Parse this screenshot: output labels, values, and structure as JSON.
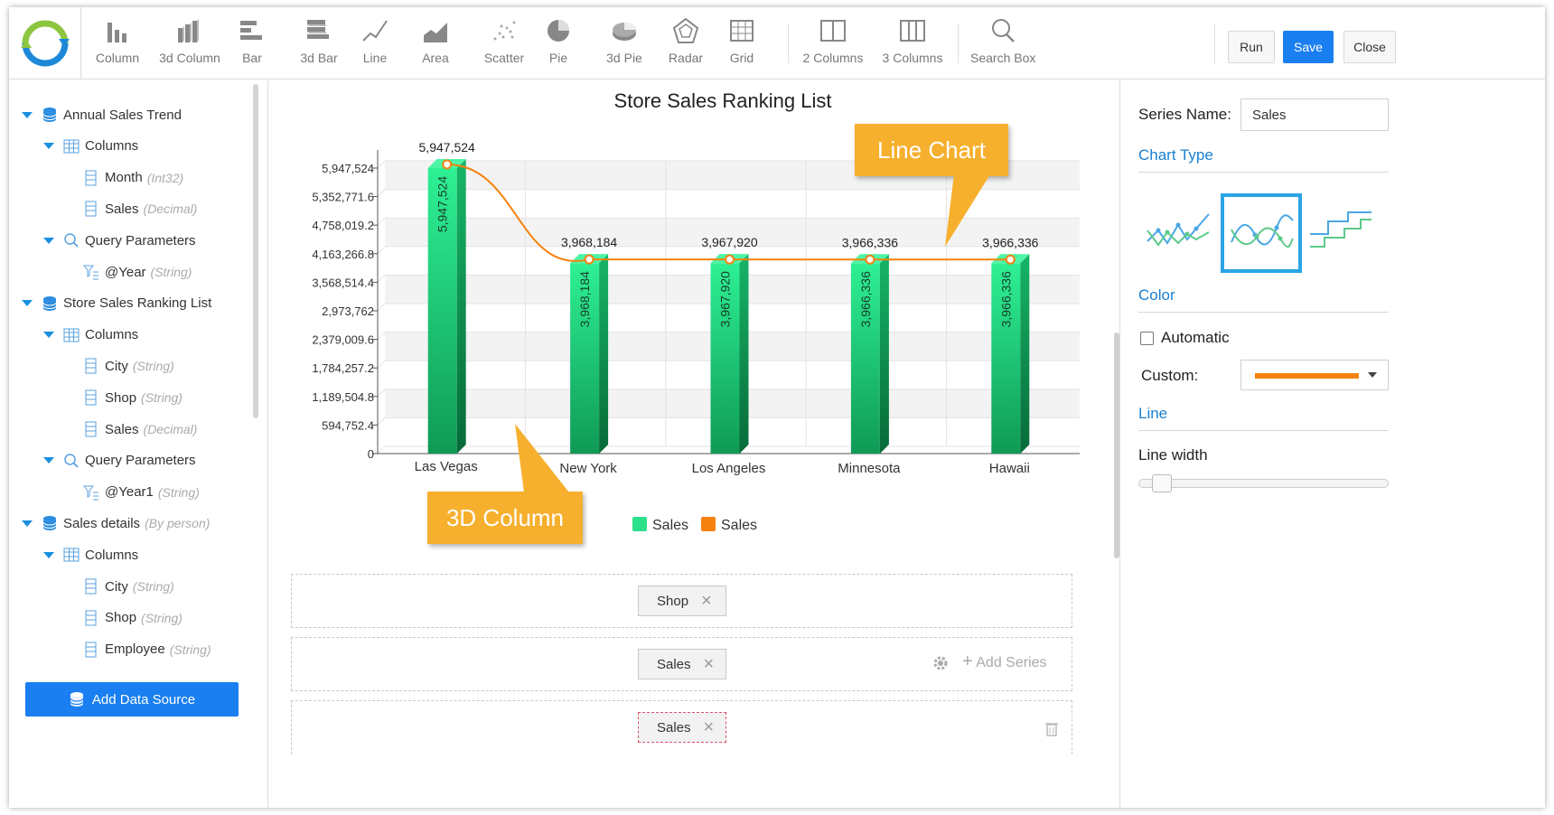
{
  "toolbar": {
    "items": [
      {
        "label": "Column",
        "icon": "column-chart-icon"
      },
      {
        "label": "3d Column",
        "icon": "3d-column-chart-icon"
      },
      {
        "label": "Bar",
        "icon": "bar-chart-icon"
      },
      {
        "label": "3d Bar",
        "icon": "3d-bar-chart-icon"
      },
      {
        "label": "Line",
        "icon": "line-chart-icon"
      },
      {
        "label": "Area",
        "icon": "area-chart-icon"
      },
      {
        "label": "Scatter",
        "icon": "scatter-chart-icon"
      },
      {
        "label": "Pie",
        "icon": "pie-chart-icon"
      },
      {
        "label": "3d Pie",
        "icon": "3d-pie-chart-icon"
      },
      {
        "label": "Radar",
        "icon": "radar-chart-icon"
      },
      {
        "label": "Grid",
        "icon": "grid-icon"
      },
      {
        "label": "2 Columns",
        "icon": "two-columns-icon"
      },
      {
        "label": "3 Columns",
        "icon": "three-columns-icon"
      },
      {
        "label": "Search Box",
        "icon": "search-icon"
      }
    ],
    "run_label": "Run",
    "save_label": "Save",
    "close_label": "Close"
  },
  "left_panel": {
    "datasources": [
      {
        "name": "Annual Sales Trend",
        "columns_label": "Columns",
        "columns": [
          {
            "name": "Month",
            "type": "(Int32)"
          },
          {
            "name": "Sales",
            "type": "(Decimal)"
          }
        ],
        "params_label": "Query Parameters",
        "params": [
          {
            "name": "@Year",
            "type": "(String)"
          }
        ]
      },
      {
        "name": "Store Sales Ranking List",
        "columns_label": "Columns",
        "columns": [
          {
            "name": "City",
            "type": "(String)"
          },
          {
            "name": "Shop",
            "type": "(String)"
          },
          {
            "name": "Sales",
            "type": "(Decimal)"
          }
        ],
        "params_label": "Query Parameters",
        "params": [
          {
            "name": "@Year1",
            "type": "(String)"
          }
        ]
      },
      {
        "name": "Sales details",
        "subtitle": "(By person)",
        "columns_label": "Columns",
        "columns": [
          {
            "name": "City",
            "type": "(String)"
          },
          {
            "name": "Shop",
            "type": "(String)"
          },
          {
            "name": "Employee",
            "type": "(String)"
          }
        ]
      }
    ],
    "add_data_source_label": "Add Data Source"
  },
  "center": {
    "callout_line": "Line Chart",
    "callout_column": "3D Column",
    "drop_zones": [
      {
        "chip": "Shop"
      },
      {
        "chip": "Sales",
        "add_series_label": "Add Series"
      },
      {
        "chip": "Sales"
      }
    ]
  },
  "chart_data": {
    "type": "bar",
    "title": "Store Sales Ranking List",
    "categories": [
      "Las Vegas",
      "New York",
      "Los Angeles",
      "Minnesota",
      "Hawaii"
    ],
    "series": [
      {
        "name": "Sales",
        "type": "3d-column",
        "color": "#2de08a",
        "values": [
          5947524,
          3968184,
          3967920,
          3966336,
          3966336
        ]
      },
      {
        "name": "Sales",
        "type": "line",
        "color": "#f5820f",
        "values": [
          5947524,
          3968184,
          3967920,
          3966336,
          3966336
        ]
      }
    ],
    "value_labels": [
      "5,947,524",
      "3,968,184",
      "3,967,920",
      "3,966,336",
      "3,966,336"
    ],
    "y_ticks": [
      "0",
      "594,752.4",
      "1,189,504.8",
      "1,784,257.2",
      "2,379,009.6",
      "2,973,762",
      "3,568,514.4",
      "4,163,266.8",
      "4,758,019.2",
      "5,352,771.6",
      "5,947,524"
    ],
    "ylim": [
      0,
      5947524
    ],
    "legend": "bottom",
    "grid": true
  },
  "right_panel": {
    "series_name_label": "Series Name:",
    "series_name_value": "Sales",
    "chart_type_label": "Chart Type",
    "color_label": "Color",
    "automatic_label": "Automatic",
    "custom_label": "Custom:",
    "custom_color": "#f5820f",
    "line_label": "Line",
    "line_width_label": "Line width",
    "line_width_level": 0.05
  }
}
